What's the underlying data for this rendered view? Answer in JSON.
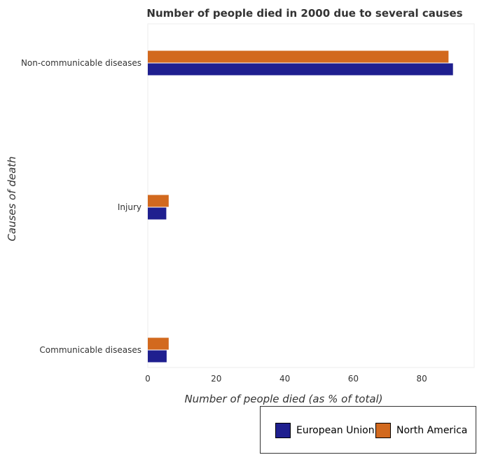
{
  "chart_data": {
    "type": "bar",
    "orientation": "horizontal",
    "title": "Number of people died in 2000 due to several causes",
    "xlabel": "Number of people died (as % of total)",
    "ylabel": "Causes of death",
    "categories": [
      "Communicable diseases",
      "Injury",
      "Non-communicable diseases"
    ],
    "series": [
      {
        "name": "European Union",
        "color": "#1f1f8f",
        "values": [
          5.5,
          5.4,
          89.1
        ]
      },
      {
        "name": "North America",
        "color": "#d2691e",
        "values": [
          6.1,
          6.1,
          87.8
        ]
      }
    ],
    "xlim": [
      0,
      95
    ],
    "xticks": [
      0,
      20,
      40,
      60,
      80
    ],
    "grid": false,
    "legend_position": "bottom-right"
  }
}
